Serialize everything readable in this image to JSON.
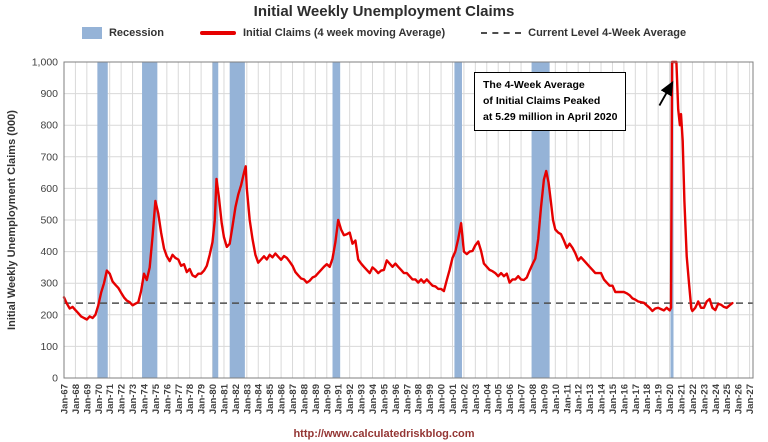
{
  "title": "Initial Weekly Unemployment Claims",
  "legend": [
    {
      "label": "Recession",
      "swatch": "recession-band-swatch",
      "color": "#95b3d7"
    },
    {
      "label": "Initial Claims (4 week moving Average)",
      "swatch": "claims-line-swatch",
      "color": "#e60000"
    },
    {
      "label": "Current Level 4-Week Average",
      "swatch": "dashed-line-swatch",
      "color": "#4d4d4d"
    }
  ],
  "annotation_text": "The 4-Week Average\nof Initial Claims Peaked\nat 5.29 million in April 2020",
  "footer_url": "http://www.calculatedriskblog.com",
  "colors": {
    "line": "#e60000",
    "recession_band": "#95b3d7",
    "dashed_level": "#4d4d4d",
    "gridline": "#d9d9d9",
    "plot_border": "#7f7f7f",
    "url_text": "#943634"
  },
  "chart_data": {
    "type": "line",
    "title": "Initial Weekly Unemployment Claims",
    "xlabel": "",
    "ylabel": "Initial Weekly Unemployment Claims (000)",
    "ylim": [
      0,
      1000
    ],
    "xlim": [
      1967,
      2027.3
    ],
    "grid": true,
    "legend_position": "top",
    "y_ticks": [
      0,
      100,
      200,
      300,
      400,
      500,
      600,
      700,
      800,
      900,
      1000
    ],
    "y_tick_labels": [
      "0",
      "100",
      "200",
      "300",
      "400",
      "500",
      "600",
      "700",
      "800",
      "900",
      "1,000"
    ],
    "x_tick_start_year": 1967,
    "x_tick_labels": [
      "Jan-67",
      "Jan-68",
      "Jan-69",
      "Jan-70",
      "Jan-71",
      "Jan-72",
      "Jan-73",
      "Jan-74",
      "Jan-75",
      "Jan-76",
      "Jan-77",
      "Jan-78",
      "Jan-79",
      "Jan-80",
      "Jan-81",
      "Jan-82",
      "Jan-83",
      "Jan-84",
      "Jan-85",
      "Jan-86",
      "Jan-87",
      "Jan-88",
      "Jan-89",
      "Jan-90",
      "Jan-91",
      "Jan-92",
      "Jan-93",
      "Jan-94",
      "Jan-95",
      "Jan-96",
      "Jan-97",
      "Jan-98",
      "Jan-99",
      "Jan-00",
      "Jan-01",
      "Jan-02",
      "Jan-03",
      "Jan-04",
      "Jan-05",
      "Jan-06",
      "Jan-07",
      "Jan-08",
      "Jan-09",
      "Jan-10",
      "Jan-11",
      "Jan-12",
      "Jan-13",
      "Jan-14",
      "Jan-15",
      "Jan-16",
      "Jan-17",
      "Jan-18",
      "Jan-19",
      "Jan-20",
      "Jan-21",
      "Jan-22",
      "Jan-23",
      "Jan-24",
      "Jan-25",
      "Jan-26",
      "Jan-27"
    ],
    "current_level": 237,
    "recession_color": "#95b3d7",
    "recessions": [
      [
        1969.92,
        1970.83
      ],
      [
        1973.83,
        1975.17
      ],
      [
        1980.0,
        1980.5
      ],
      [
        1981.5,
        1982.83
      ],
      [
        1990.5,
        1991.17
      ],
      [
        2001.17,
        2001.83
      ],
      [
        2007.92,
        2009.5
      ],
      [
        2020.08,
        2020.33
      ]
    ],
    "annotation": {
      "text": "The 4-Week Average of Initial Claims Peaked at 5.29 million in April 2020",
      "peak_value_thousands": 5290,
      "peak_date": "April 2020",
      "points_to": {
        "x": 2020.25,
        "y": 935
      }
    },
    "series": [
      {
        "name": "Initial Claims (4 week moving Average)",
        "color": "#e60000",
        "units": "thousands",
        "points": [
          [
            1967,
            255
          ],
          [
            1967.25,
            235
          ],
          [
            1967.5,
            220
          ],
          [
            1967.75,
            225
          ],
          [
            1968,
            215
          ],
          [
            1968.25,
            205
          ],
          [
            1968.5,
            195
          ],
          [
            1968.75,
            190
          ],
          [
            1969,
            185
          ],
          [
            1969.25,
            195
          ],
          [
            1969.5,
            190
          ],
          [
            1969.75,
            200
          ],
          [
            1970,
            230
          ],
          [
            1970.25,
            270
          ],
          [
            1970.5,
            300
          ],
          [
            1970.75,
            340
          ],
          [
            1971,
            330
          ],
          [
            1971.25,
            305
          ],
          [
            1971.5,
            295
          ],
          [
            1971.75,
            285
          ],
          [
            1972,
            270
          ],
          [
            1972.25,
            255
          ],
          [
            1972.5,
            245
          ],
          [
            1972.75,
            240
          ],
          [
            1973,
            230
          ],
          [
            1973.25,
            235
          ],
          [
            1973.5,
            240
          ],
          [
            1973.75,
            275
          ],
          [
            1974,
            330
          ],
          [
            1974.25,
            310
          ],
          [
            1974.5,
            350
          ],
          [
            1974.75,
            450
          ],
          [
            1975,
            560
          ],
          [
            1975.25,
            520
          ],
          [
            1975.5,
            460
          ],
          [
            1975.75,
            410
          ],
          [
            1976,
            385
          ],
          [
            1976.25,
            370
          ],
          [
            1976.5,
            390
          ],
          [
            1976.75,
            380
          ],
          [
            1977,
            375
          ],
          [
            1977.25,
            355
          ],
          [
            1977.5,
            360
          ],
          [
            1977.75,
            335
          ],
          [
            1978,
            345
          ],
          [
            1978.25,
            325
          ],
          [
            1978.5,
            320
          ],
          [
            1978.75,
            330
          ],
          [
            1979,
            330
          ],
          [
            1979.25,
            340
          ],
          [
            1979.5,
            355
          ],
          [
            1979.75,
            390
          ],
          [
            1980,
            430
          ],
          [
            1980.2,
            500
          ],
          [
            1980.35,
            630
          ],
          [
            1980.55,
            575
          ],
          [
            1980.8,
            490
          ],
          [
            1981,
            445
          ],
          [
            1981.25,
            415
          ],
          [
            1981.5,
            425
          ],
          [
            1981.75,
            480
          ],
          [
            1982,
            540
          ],
          [
            1982.25,
            580
          ],
          [
            1982.5,
            610
          ],
          [
            1982.75,
            650
          ],
          [
            1982.9,
            670
          ],
          [
            1983,
            600
          ],
          [
            1983.25,
            500
          ],
          [
            1983.5,
            440
          ],
          [
            1983.75,
            390
          ],
          [
            1984,
            365
          ],
          [
            1984.25,
            375
          ],
          [
            1984.5,
            385
          ],
          [
            1984.75,
            375
          ],
          [
            1985,
            390
          ],
          [
            1985.25,
            382
          ],
          [
            1985.5,
            394
          ],
          [
            1985.75,
            384
          ],
          [
            1986,
            374
          ],
          [
            1986.25,
            386
          ],
          [
            1986.5,
            380
          ],
          [
            1986.75,
            368
          ],
          [
            1987,
            355
          ],
          [
            1987.25,
            335
          ],
          [
            1987.5,
            325
          ],
          [
            1987.75,
            315
          ],
          [
            1988,
            312
          ],
          [
            1988.25,
            302
          ],
          [
            1988.5,
            308
          ],
          [
            1988.75,
            318
          ],
          [
            1989,
            322
          ],
          [
            1989.25,
            332
          ],
          [
            1989.5,
            342
          ],
          [
            1989.75,
            352
          ],
          [
            1990,
            360
          ],
          [
            1990.25,
            352
          ],
          [
            1990.5,
            378
          ],
          [
            1990.75,
            430
          ],
          [
            1991,
            500
          ],
          [
            1991.25,
            470
          ],
          [
            1991.5,
            452
          ],
          [
            1991.75,
            455
          ],
          [
            1992,
            460
          ],
          [
            1992.25,
            425
          ],
          [
            1992.5,
            435
          ],
          [
            1992.75,
            375
          ],
          [
            1993,
            362
          ],
          [
            1993.25,
            352
          ],
          [
            1993.5,
            342
          ],
          [
            1993.75,
            332
          ],
          [
            1994,
            350
          ],
          [
            1994.25,
            342
          ],
          [
            1994.5,
            332
          ],
          [
            1994.75,
            340
          ],
          [
            1995,
            342
          ],
          [
            1995.25,
            372
          ],
          [
            1995.5,
            362
          ],
          [
            1995.75,
            352
          ],
          [
            1996,
            362
          ],
          [
            1996.25,
            352
          ],
          [
            1996.5,
            342
          ],
          [
            1996.75,
            332
          ],
          [
            1997,
            332
          ],
          [
            1997.25,
            322
          ],
          [
            1997.5,
            312
          ],
          [
            1997.75,
            312
          ],
          [
            1998,
            302
          ],
          [
            1998.25,
            312
          ],
          [
            1998.5,
            302
          ],
          [
            1998.75,
            312
          ],
          [
            1999,
            302
          ],
          [
            1999.25,
            292
          ],
          [
            1999.5,
            290
          ],
          [
            1999.75,
            282
          ],
          [
            2000,
            282
          ],
          [
            2000.25,
            275
          ],
          [
            2000.5,
            310
          ],
          [
            2000.75,
            342
          ],
          [
            2001,
            380
          ],
          [
            2001.25,
            400
          ],
          [
            2001.5,
            440
          ],
          [
            2001.75,
            490
          ],
          [
            2002,
            400
          ],
          [
            2002.25,
            392
          ],
          [
            2002.5,
            400
          ],
          [
            2002.75,
            402
          ],
          [
            2003,
            420
          ],
          [
            2003.25,
            432
          ],
          [
            2003.5,
            402
          ],
          [
            2003.75,
            362
          ],
          [
            2004,
            352
          ],
          [
            2004.25,
            342
          ],
          [
            2004.5,
            338
          ],
          [
            2004.75,
            332
          ],
          [
            2005,
            322
          ],
          [
            2005.25,
            332
          ],
          [
            2005.5,
            322
          ],
          [
            2005.75,
            330
          ],
          [
            2006,
            302
          ],
          [
            2006.25,
            312
          ],
          [
            2006.5,
            312
          ],
          [
            2006.75,
            322
          ],
          [
            2007,
            312
          ],
          [
            2007.25,
            310
          ],
          [
            2007.5,
            318
          ],
          [
            2007.75,
            340
          ],
          [
            2008,
            360
          ],
          [
            2008.25,
            378
          ],
          [
            2008.5,
            440
          ],
          [
            2008.75,
            540
          ],
          [
            2009,
            628
          ],
          [
            2009.2,
            655
          ],
          [
            2009.4,
            620
          ],
          [
            2009.6,
            560
          ],
          [
            2009.8,
            500
          ],
          [
            2010,
            470
          ],
          [
            2010.25,
            460
          ],
          [
            2010.5,
            455
          ],
          [
            2010.75,
            435
          ],
          [
            2011,
            412
          ],
          [
            2011.25,
            425
          ],
          [
            2011.5,
            412
          ],
          [
            2011.75,
            395
          ],
          [
            2012,
            372
          ],
          [
            2012.25,
            382
          ],
          [
            2012.5,
            372
          ],
          [
            2012.75,
            362
          ],
          [
            2013,
            352
          ],
          [
            2013.25,
            342
          ],
          [
            2013.5,
            332
          ],
          [
            2013.75,
            332
          ],
          [
            2014,
            332
          ],
          [
            2014.25,
            312
          ],
          [
            2014.5,
            302
          ],
          [
            2014.75,
            292
          ],
          [
            2015,
            292
          ],
          [
            2015.25,
            272
          ],
          [
            2015.5,
            272
          ],
          [
            2015.75,
            272
          ],
          [
            2016,
            272
          ],
          [
            2016.25,
            268
          ],
          [
            2016.5,
            262
          ],
          [
            2016.75,
            252
          ],
          [
            2017,
            248
          ],
          [
            2017.25,
            242
          ],
          [
            2017.5,
            240
          ],
          [
            2017.75,
            238
          ],
          [
            2018,
            230
          ],
          [
            2018.25,
            222
          ],
          [
            2018.5,
            212
          ],
          [
            2018.75,
            220
          ],
          [
            2019,
            222
          ],
          [
            2019.25,
            218
          ],
          [
            2019.5,
            214
          ],
          [
            2019.75,
            222
          ],
          [
            2020,
            214
          ],
          [
            2020.12,
            222
          ],
          [
            2020.22,
            1500
          ],
          [
            2020.3,
            5290
          ],
          [
            2020.45,
            3200
          ],
          [
            2020.6,
            1400
          ],
          [
            2020.75,
            850
          ],
          [
            2020.9,
            800
          ],
          [
            2021,
            835
          ],
          [
            2021.15,
            750
          ],
          [
            2021.3,
            560
          ],
          [
            2021.5,
            385
          ],
          [
            2021.7,
            300
          ],
          [
            2021.9,
            220
          ],
          [
            2022,
            212
          ],
          [
            2022.25,
            222
          ],
          [
            2022.5,
            242
          ],
          [
            2022.75,
            222
          ],
          [
            2023,
            222
          ],
          [
            2023.25,
            242
          ],
          [
            2023.5,
            250
          ],
          [
            2023.75,
            222
          ],
          [
            2024,
            215
          ],
          [
            2024.25,
            235
          ],
          [
            2024.5,
            232
          ],
          [
            2024.75,
            225
          ],
          [
            2025,
            222
          ],
          [
            2025.25,
            230
          ],
          [
            2025.5,
            237
          ]
        ]
      }
    ]
  }
}
